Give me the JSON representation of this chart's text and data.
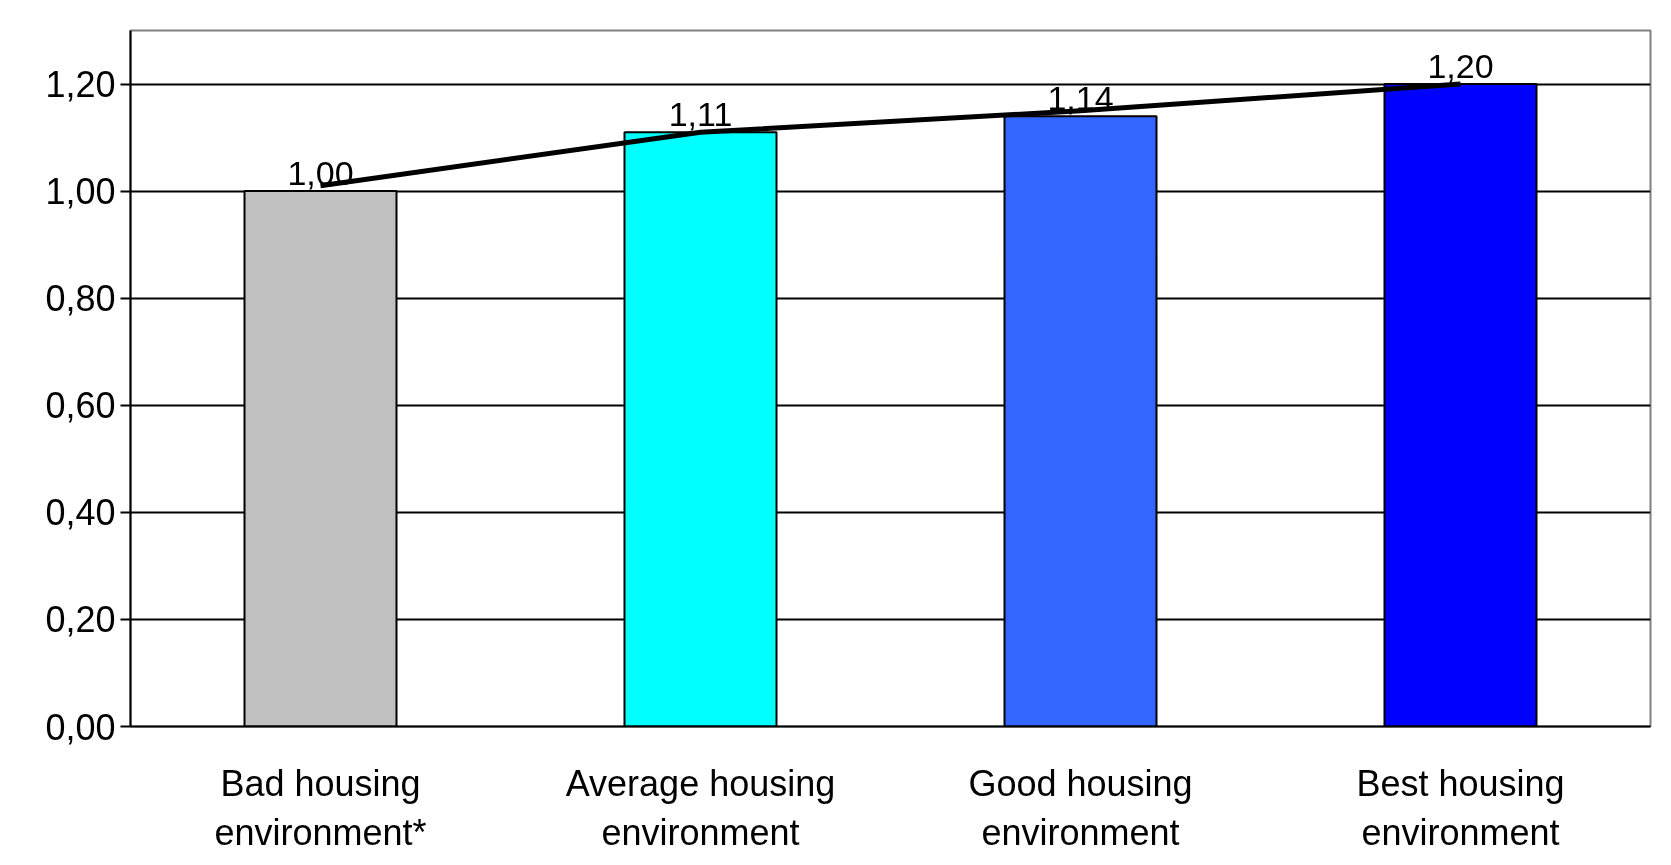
{
  "chart_data": {
    "type": "bar",
    "categories": [
      "Bad housing environment*",
      "Average housing environment",
      "Good housing environment",
      "Best housing environment"
    ],
    "series": [
      {
        "values": [
          1.0,
          1.11,
          1.14,
          1.2
        ],
        "colors": [
          "#c0c0c0",
          "#00ffff",
          "#3366ff",
          "#0000ff"
        ],
        "value_labels": [
          "1,00",
          "1,11",
          "1,14",
          "1,20"
        ]
      },
      {
        "type": "line",
        "color": "#000000",
        "values": [
          1.01,
          1.11,
          1.15,
          1.2
        ]
      }
    ],
    "ylim": [
      0,
      1.3
    ],
    "yticks": [
      {
        "value": 0,
        "label": "0,00"
      },
      {
        "value": 0.2,
        "label": "0,20"
      },
      {
        "value": 0.4,
        "label": "0,40"
      },
      {
        "value": 0.6,
        "label": "0,60"
      },
      {
        "value": 0.8,
        "label": "0,80"
      },
      {
        "value": 1.0,
        "label": "1,00"
      },
      {
        "value": 1.2,
        "label": "1,20"
      }
    ],
    "grid": "y"
  }
}
